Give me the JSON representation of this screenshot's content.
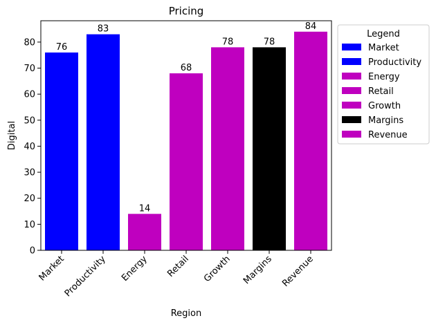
{
  "chart_data": {
    "type": "bar",
    "title": "Pricing",
    "xlabel": "Region",
    "ylabel": "Digital",
    "categories": [
      "Market",
      "Productivity",
      "Energy",
      "Retail",
      "Growth",
      "Margins",
      "Revenue"
    ],
    "values": [
      76,
      83,
      14,
      68,
      78,
      78,
      84
    ],
    "colors": [
      "#0000ff",
      "#0000ff",
      "#bf00bf",
      "#bf00bf",
      "#bf00bf",
      "#000000",
      "#bf00bf"
    ],
    "ylim": [
      0,
      88.2
    ],
    "yticks": [
      0,
      10,
      20,
      30,
      40,
      50,
      60,
      70,
      80
    ],
    "grid": false,
    "legend": {
      "title": "Legend",
      "placement": "outside-right",
      "entries": [
        "Market",
        "Productivity",
        "Energy",
        "Retail",
        "Growth",
        "Margins",
        "Revenue"
      ]
    }
  }
}
